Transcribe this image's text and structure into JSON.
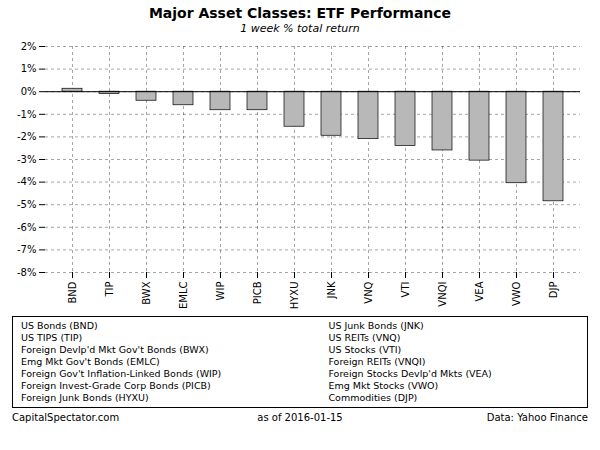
{
  "chart_data": {
    "type": "bar",
    "title": "Major Asset Classes: ETF Performance",
    "subtitle": "1 week % total return",
    "categories": [
      "BND",
      "TIP",
      "BWX",
      "EMLC",
      "WIP",
      "PICB",
      "HYXU",
      "JNK",
      "VNQ",
      "VTI",
      "VNQI",
      "VEA",
      "VWO",
      "DJP"
    ],
    "values": [
      0.13,
      -0.1,
      -0.4,
      -0.6,
      -0.82,
      -0.82,
      -1.55,
      -1.95,
      -2.1,
      -2.4,
      -2.6,
      -3.05,
      -4.05,
      -4.85
    ],
    "color": "#b8b8b8",
    "ylim": [
      -8,
      2
    ],
    "yticks": [
      {
        "value": -8,
        "label": "-8%"
      },
      {
        "value": -7,
        "label": "-7%"
      },
      {
        "value": -6,
        "label": "-6%"
      },
      {
        "value": -5,
        "label": "-5%"
      },
      {
        "value": -4,
        "label": "-4%"
      },
      {
        "value": -3,
        "label": "-3%"
      },
      {
        "value": -2,
        "label": "-2%"
      },
      {
        "value": -1,
        "label": "-1%"
      },
      {
        "value": 0,
        "label": "0%"
      },
      {
        "value": 1,
        "label": "1%"
      },
      {
        "value": 2,
        "label": "2%"
      }
    ],
    "grid": true,
    "annotations": [
      "US Bonds (BND)",
      "US TIPS (TIP)",
      "Foreign Devlp'd Mkt Gov't Bonds (BWX)",
      "Emg Mkt Gov't Bonds (EMLC)",
      "Foreign Gov't Inflation-Linked Bonds (WIP)",
      "Foreign Invest-Grade Corp Bonds (PICB)",
      "Foreign Junk Bonds (HYXU)",
      "US Junk Bonds (JNK)",
      "US REITs (VNQ)",
      "US Stocks (VTI)",
      "Foreign REITs (VNQI)",
      "Foreign Stocks Devlp'd Mkts (VEA)",
      "Emg Mkt Stocks (VWO)",
      "Commodities (DJP)",
      "CapitalSpectator.com",
      "as of  2016-01-15",
      "Data: Yahoo Finance"
    ]
  }
}
